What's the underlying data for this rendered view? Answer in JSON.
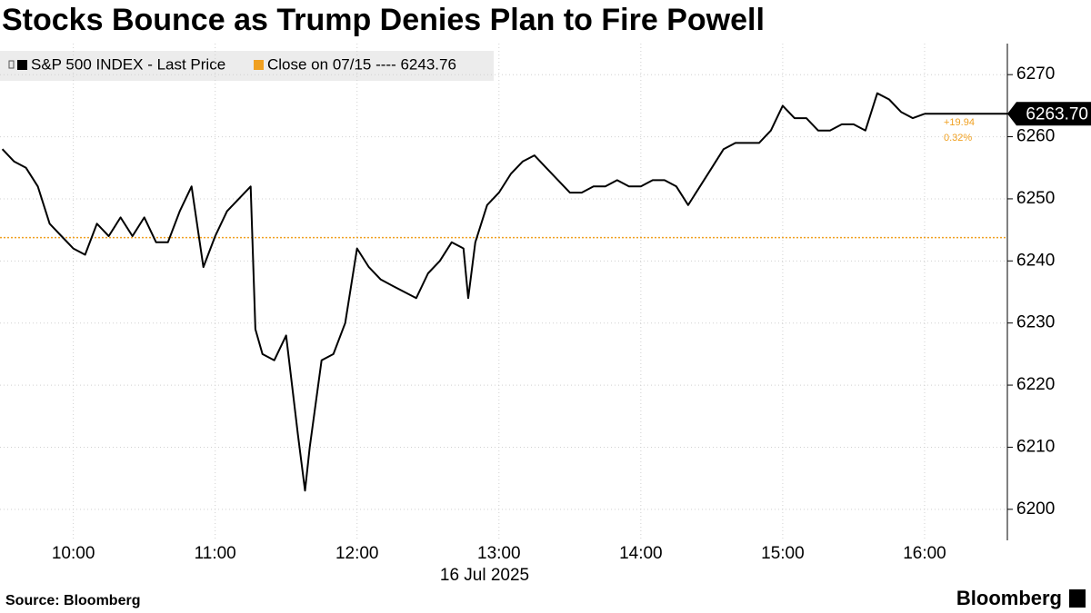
{
  "chart_data": {
    "type": "line",
    "title": "Stocks Bounce as Trump Denies Plan to Fire Powell",
    "x_label": "16 Jul 2025",
    "source": "Source: Bloomberg",
    "brand": "Bloomberg",
    "x": [
      570,
      575,
      580,
      585,
      590,
      595,
      600,
      605,
      610,
      615,
      620,
      625,
      630,
      635,
      640,
      645,
      650,
      655,
      660,
      665,
      670,
      675,
      677,
      680,
      685,
      690,
      695,
      698,
      700,
      705,
      710,
      715,
      720,
      725,
      730,
      735,
      740,
      745,
      750,
      755,
      760,
      765,
      767,
      770,
      775,
      780,
      785,
      790,
      795,
      800,
      805,
      810,
      815,
      820,
      825,
      830,
      835,
      840,
      845,
      850,
      855,
      860,
      865,
      870,
      875,
      880,
      885,
      890,
      895,
      900,
      905,
      910,
      915,
      920,
      925,
      930,
      935,
      940,
      945,
      950,
      955,
      960
    ],
    "series": [
      {
        "name": "S&P 500 INDEX - Last Price",
        "color": "#000000",
        "values": [
          6258,
          6256,
          6255,
          6252,
          6246,
          6244,
          6242,
          6241,
          6246,
          6244,
          6247,
          6244,
          6247,
          6243,
          6243,
          6248,
          6252,
          6239,
          6244,
          6248,
          6250,
          6252,
          6229,
          6225,
          6224,
          6228,
          6212,
          6203,
          6210,
          6224,
          6225,
          6230,
          6242,
          6239,
          6237,
          6236,
          6235,
          6234,
          6238,
          6240,
          6243,
          6242,
          6234,
          6243,
          6249,
          6251,
          6254,
          6256,
          6257,
          6255,
          6253,
          6251,
          6251,
          6252,
          6252,
          6253,
          6252,
          6252,
          6253,
          6253,
          6252,
          6249,
          6252,
          6255,
          6258,
          6259,
          6259,
          6259,
          6261,
          6265,
          6263,
          6263,
          6261,
          6261,
          6262,
          6262,
          6261,
          6267,
          6266,
          6264,
          6263,
          6263.7
        ],
        "last_label": {
          "value": 6263.7,
          "label": "6263.70"
        },
        "change": "+19.94",
        "change_pct": "0.32%"
      }
    ],
    "reference_line": {
      "name": "Close on 07/15 ---- 6243.76",
      "value": 6243.76,
      "color": "#f0a020"
    },
    "xlim": [
      569,
      995
    ],
    "ylim": [
      6195,
      6275
    ],
    "xticks": [
      {
        "value": 600,
        "label": "10:00"
      },
      {
        "value": 660,
        "label": "11:00"
      },
      {
        "value": 720,
        "label": "12:00"
      },
      {
        "value": 780,
        "label": "13:00"
      },
      {
        "value": 840,
        "label": "14:00"
      },
      {
        "value": 900,
        "label": "15:00"
      },
      {
        "value": 960,
        "label": "16:00"
      }
    ],
    "yticks": [
      6200,
      6210,
      6220,
      6230,
      6240,
      6250,
      6260,
      6270
    ],
    "grid": true
  }
}
